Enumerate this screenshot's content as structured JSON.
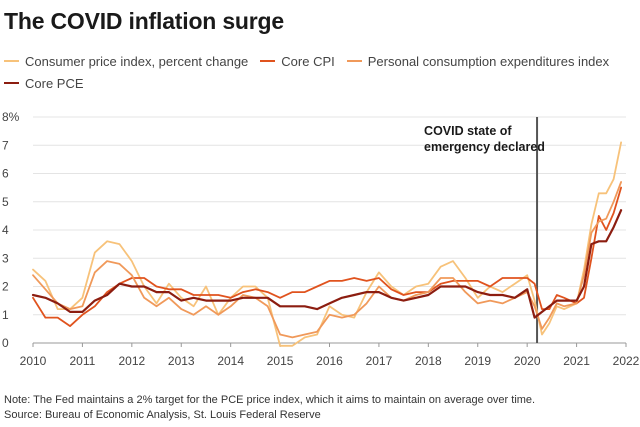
{
  "title": "The COVID inflation surge",
  "notes": {
    "note": "Note: The Fed maintains a 2% target for the PCE price index, which it aims to maintain on average over time.",
    "source": "Source: Bureau of Economic Analysis, St. Louis Federal Reserve"
  },
  "colors": {
    "cpi": "#f7c27a",
    "core_cpi": "#e0531e",
    "pce": "#f0995a",
    "core_pce": "#8c1d10",
    "marker": "#555555",
    "axis": "#999999"
  },
  "chart_data": {
    "type": "line",
    "title": "The COVID inflation surge",
    "xlabel": "",
    "ylabel": "",
    "ylim": [
      0,
      8
    ],
    "xlim": [
      2010,
      2022
    ],
    "y_ticks": [
      "0",
      "1",
      "2",
      "3",
      "4",
      "5",
      "6",
      "7",
      "8%"
    ],
    "x_ticks": [
      "2010",
      "2011",
      "2012",
      "2013",
      "2014",
      "2015",
      "2016",
      "2017",
      "2018",
      "2019",
      "2020",
      "2021",
      "2022"
    ],
    "legend_position": "top-left",
    "annotations": [
      {
        "x": 2020.2,
        "text": "COVID state of emergency declared",
        "lines": [
          "COVID state of",
          "emergency declared"
        ]
      }
    ],
    "series": [
      {
        "name": "Consumer price index, percent change",
        "key": "cpi",
        "x": [
          2010.0,
          2010.25,
          2010.5,
          2010.75,
          2011.0,
          2011.25,
          2011.5,
          2011.75,
          2012.0,
          2012.25,
          2012.5,
          2012.75,
          2013.0,
          2013.25,
          2013.5,
          2013.75,
          2014.0,
          2014.25,
          2014.5,
          2014.75,
          2015.0,
          2015.25,
          2015.5,
          2015.75,
          2016.0,
          2016.25,
          2016.5,
          2016.75,
          2017.0,
          2017.25,
          2017.5,
          2017.75,
          2018.0,
          2018.25,
          2018.5,
          2018.75,
          2019.0,
          2019.25,
          2019.5,
          2019.75,
          2020.0,
          2020.15,
          2020.3,
          2020.45,
          2020.6,
          2020.75,
          2021.0,
          2021.15,
          2021.3,
          2021.45,
          2021.6,
          2021.75,
          2021.9
        ],
        "y": [
          2.6,
          2.2,
          1.2,
          1.2,
          1.6,
          3.2,
          3.6,
          3.5,
          2.9,
          2.0,
          1.4,
          2.1,
          1.6,
          1.3,
          2.0,
          1.0,
          1.6,
          2.0,
          2.0,
          1.6,
          -0.1,
          -0.1,
          0.2,
          0.3,
          1.3,
          1.0,
          0.9,
          1.8,
          2.5,
          2.0,
          1.7,
          2.0,
          2.1,
          2.7,
          2.9,
          2.3,
          1.6,
          2.0,
          1.8,
          2.1,
          2.4,
          1.5,
          0.3,
          0.7,
          1.3,
          1.2,
          1.4,
          2.6,
          4.2,
          5.3,
          5.3,
          5.8,
          7.1
        ]
      },
      {
        "name": "Core CPI",
        "key": "core_cpi",
        "x": [
          2010.0,
          2010.25,
          2010.5,
          2010.75,
          2011.0,
          2011.25,
          2011.5,
          2011.75,
          2012.0,
          2012.25,
          2012.5,
          2012.75,
          2013.0,
          2013.25,
          2013.5,
          2013.75,
          2014.0,
          2014.25,
          2014.5,
          2014.75,
          2015.0,
          2015.25,
          2015.5,
          2015.75,
          2016.0,
          2016.25,
          2016.5,
          2016.75,
          2017.0,
          2017.25,
          2017.5,
          2017.75,
          2018.0,
          2018.25,
          2018.5,
          2018.75,
          2019.0,
          2019.25,
          2019.5,
          2019.75,
          2020.0,
          2020.15,
          2020.3,
          2020.45,
          2020.6,
          2020.75,
          2021.0,
          2021.15,
          2021.3,
          2021.45,
          2021.6,
          2021.75,
          2021.9
        ],
        "y": [
          1.6,
          0.9,
          0.9,
          0.6,
          1.0,
          1.3,
          1.8,
          2.1,
          2.3,
          2.3,
          2.0,
          1.9,
          1.9,
          1.7,
          1.7,
          1.7,
          1.6,
          1.8,
          1.9,
          1.8,
          1.6,
          1.8,
          1.8,
          2.0,
          2.2,
          2.2,
          2.3,
          2.2,
          2.3,
          1.9,
          1.7,
          1.8,
          1.8,
          2.1,
          2.2,
          2.2,
          2.2,
          2.0,
          2.3,
          2.3,
          2.3,
          2.1,
          1.2,
          1.2,
          1.7,
          1.6,
          1.4,
          1.6,
          3.0,
          4.5,
          4.0,
          4.6,
          5.5
        ]
      },
      {
        "name": "Personal consumption expenditures index",
        "key": "pce",
        "x": [
          2010.0,
          2010.25,
          2010.5,
          2010.75,
          2011.0,
          2011.25,
          2011.5,
          2011.75,
          2012.0,
          2012.25,
          2012.5,
          2012.75,
          2013.0,
          2013.25,
          2013.5,
          2013.75,
          2014.0,
          2014.25,
          2014.5,
          2014.75,
          2015.0,
          2015.25,
          2015.5,
          2015.75,
          2016.0,
          2016.25,
          2016.5,
          2016.75,
          2017.0,
          2017.25,
          2017.5,
          2017.75,
          2018.0,
          2018.25,
          2018.5,
          2018.75,
          2019.0,
          2019.25,
          2019.5,
          2019.75,
          2020.0,
          2020.15,
          2020.3,
          2020.45,
          2020.6,
          2020.75,
          2021.0,
          2021.15,
          2021.3,
          2021.45,
          2021.6,
          2021.75,
          2021.9
        ],
        "y": [
          2.4,
          1.9,
          1.4,
          1.2,
          1.3,
          2.5,
          2.9,
          2.8,
          2.4,
          1.6,
          1.3,
          1.6,
          1.2,
          1.0,
          1.3,
          1.0,
          1.3,
          1.7,
          1.6,
          1.3,
          0.3,
          0.2,
          0.3,
          0.4,
          1.0,
          0.9,
          1.0,
          1.4,
          2.0,
          1.6,
          1.5,
          1.7,
          1.8,
          2.3,
          2.3,
          1.8,
          1.4,
          1.5,
          1.4,
          1.6,
          1.8,
          1.3,
          0.5,
          0.9,
          1.4,
          1.3,
          1.4,
          2.4,
          3.9,
          4.3,
          4.4,
          5.0,
          5.7
        ]
      },
      {
        "name": "Core PCE",
        "key": "core_pce",
        "x": [
          2010.0,
          2010.25,
          2010.5,
          2010.75,
          2011.0,
          2011.25,
          2011.5,
          2011.75,
          2012.0,
          2012.25,
          2012.5,
          2012.75,
          2013.0,
          2013.25,
          2013.5,
          2013.75,
          2014.0,
          2014.25,
          2014.5,
          2014.75,
          2015.0,
          2015.25,
          2015.5,
          2015.75,
          2016.0,
          2016.25,
          2016.5,
          2016.75,
          2017.0,
          2017.25,
          2017.5,
          2017.75,
          2018.0,
          2018.25,
          2018.5,
          2018.75,
          2019.0,
          2019.25,
          2019.5,
          2019.75,
          2020.0,
          2020.15,
          2020.3,
          2020.45,
          2020.6,
          2020.75,
          2021.0,
          2021.15,
          2021.3,
          2021.45,
          2021.6,
          2021.75,
          2021.9
        ],
        "y": [
          1.7,
          1.6,
          1.4,
          1.1,
          1.1,
          1.5,
          1.7,
          2.1,
          2.0,
          2.0,
          1.8,
          1.8,
          1.5,
          1.6,
          1.5,
          1.5,
          1.5,
          1.6,
          1.6,
          1.6,
          1.3,
          1.3,
          1.3,
          1.2,
          1.4,
          1.6,
          1.7,
          1.8,
          1.8,
          1.6,
          1.5,
          1.6,
          1.7,
          2.0,
          2.0,
          2.0,
          1.8,
          1.7,
          1.7,
          1.6,
          1.9,
          0.9,
          1.1,
          1.3,
          1.5,
          1.5,
          1.5,
          2.0,
          3.5,
          3.6,
          3.6,
          4.1,
          4.7
        ]
      }
    ]
  }
}
